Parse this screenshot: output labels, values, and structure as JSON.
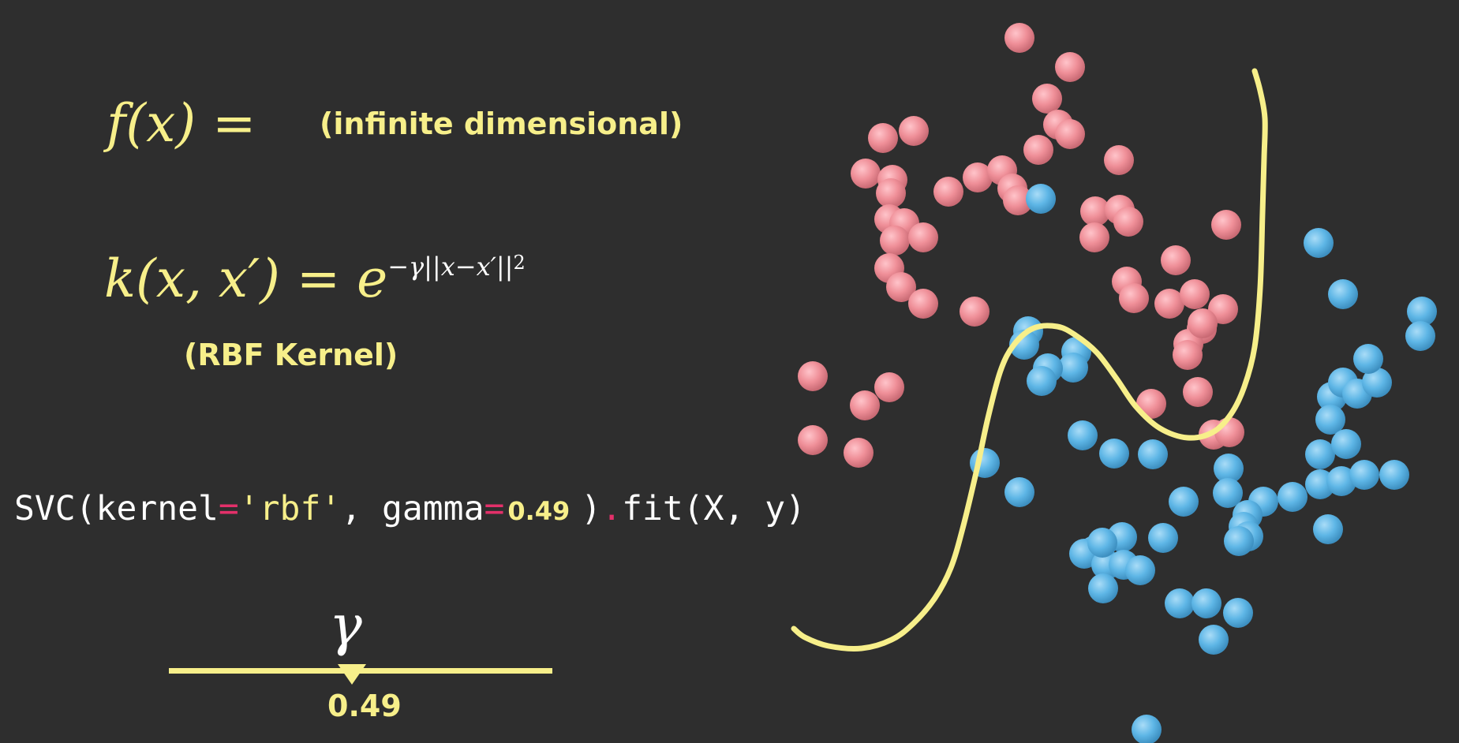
{
  "equations": {
    "f_lhs": "f(x) =",
    "f_note": "(infinite dimensional)",
    "kernel_lhs": "k(x, x′) = e",
    "kernel_exponent": "−γ||x−x′||",
    "kernel_power": "2",
    "kernel_note": "(RBF Kernel)"
  },
  "code": {
    "prefix": "SVC(kernel",
    "eq1": "=",
    "kernel_value": "'rbf'",
    "mid": ", gamma",
    "eq2": "=",
    "gamma_value": "0.49",
    "close": ")",
    "dot": ".",
    "suffix": "fit(X, y)"
  },
  "slider": {
    "symbol": "γ",
    "value_label": "0.49",
    "fraction": 0.41
  },
  "colors": {
    "background": "#2e2e2e",
    "accent_yellow": "#f7ef8a",
    "red_class": "#ef8f98",
    "blue_class": "#5eb6e6",
    "code_operator": "#e3306a"
  },
  "scatter": {
    "red_points": [
      [
        1292,
        48
      ],
      [
        1356,
        85
      ],
      [
        1327,
        125
      ],
      [
        1341,
        158
      ],
      [
        1356,
        170
      ],
      [
        1316,
        190
      ],
      [
        1418,
        203
      ],
      [
        1119,
        175
      ],
      [
        1158,
        166
      ],
      [
        1097,
        220
      ],
      [
        1131,
        228
      ],
      [
        1129,
        245
      ],
      [
        1202,
        243
      ],
      [
        1239,
        225
      ],
      [
        1270,
        216
      ],
      [
        1283,
        239
      ],
      [
        1290,
        254
      ],
      [
        1388,
        268
      ],
      [
        1419,
        266
      ],
      [
        1430,
        281
      ],
      [
        1387,
        301
      ],
      [
        1554,
        285
      ],
      [
        1490,
        330
      ],
      [
        1127,
        278
      ],
      [
        1146,
        283
      ],
      [
        1134,
        305
      ],
      [
        1170,
        301
      ],
      [
        1127,
        340
      ],
      [
        1142,
        364
      ],
      [
        1170,
        385
      ],
      [
        1235,
        395
      ],
      [
        1428,
        357
      ],
      [
        1437,
        378
      ],
      [
        1482,
        385
      ],
      [
        1514,
        373
      ],
      [
        1550,
        392
      ],
      [
        1523,
        417
      ],
      [
        1506,
        436
      ],
      [
        1524,
        410
      ],
      [
        1505,
        450
      ],
      [
        1030,
        477
      ],
      [
        1127,
        491
      ],
      [
        1096,
        514
      ],
      [
        1030,
        558
      ],
      [
        1088,
        574
      ],
      [
        1459,
        512
      ],
      [
        1518,
        497
      ],
      [
        1538,
        551
      ],
      [
        1558,
        548
      ]
    ],
    "blue_points": [
      [
        1319,
        252
      ],
      [
        1303,
        420
      ],
      [
        1298,
        437
      ],
      [
        1364,
        446
      ],
      [
        1360,
        466
      ],
      [
        1328,
        467
      ],
      [
        1320,
        483
      ],
      [
        1372,
        552
      ],
      [
        1248,
        587
      ],
      [
        1292,
        624
      ],
      [
        1461,
        576
      ],
      [
        1500,
        636
      ],
      [
        1557,
        594
      ],
      [
        1556,
        625
      ],
      [
        1601,
        636
      ],
      [
        1581,
        653
      ],
      [
        1576,
        668
      ],
      [
        1582,
        680
      ],
      [
        1570,
        686
      ],
      [
        1638,
        630
      ],
      [
        1673,
        614
      ],
      [
        1673,
        576
      ],
      [
        1688,
        503
      ],
      [
        1702,
        485
      ],
      [
        1686,
        532
      ],
      [
        1706,
        563
      ],
      [
        1720,
        499
      ],
      [
        1745,
        485
      ],
      [
        1700,
        610
      ],
      [
        1729,
        602
      ],
      [
        1683,
        671
      ],
      [
        1767,
        602
      ],
      [
        1734,
        455
      ],
      [
        1802,
        395
      ],
      [
        1800,
        426
      ],
      [
        1671,
        308
      ],
      [
        1702,
        373
      ],
      [
        1412,
        575
      ],
      [
        1474,
        682
      ],
      [
        1422,
        681
      ],
      [
        1387,
        698
      ],
      [
        1374,
        702
      ],
      [
        1402,
        716
      ],
      [
        1397,
        688
      ],
      [
        1424,
        716
      ],
      [
        1445,
        723
      ],
      [
        1398,
        746
      ],
      [
        1495,
        765
      ],
      [
        1529,
        765
      ],
      [
        1569,
        777
      ],
      [
        1538,
        811
      ],
      [
        1453,
        925
      ]
    ],
    "boundary": [
      [
        1006,
        797
      ],
      [
        1020,
        808
      ],
      [
        1050,
        819
      ],
      [
        1092,
        822
      ],
      [
        1130,
        811
      ],
      [
        1158,
        790
      ],
      [
        1185,
        758
      ],
      [
        1205,
        720
      ],
      [
        1220,
        670
      ],
      [
        1238,
        595
      ],
      [
        1252,
        530
      ],
      [
        1268,
        470
      ],
      [
        1285,
        437
      ],
      [
        1310,
        416
      ],
      [
        1340,
        414
      ],
      [
        1363,
        425
      ],
      [
        1390,
        447
      ],
      [
        1415,
        480
      ],
      [
        1440,
        516
      ],
      [
        1470,
        543
      ],
      [
        1505,
        555
      ],
      [
        1537,
        548
      ],
      [
        1560,
        525
      ],
      [
        1577,
        490
      ],
      [
        1590,
        440
      ],
      [
        1597,
        365
      ],
      [
        1600,
        270
      ],
      [
        1602,
        200
      ],
      [
        1603,
        150
      ],
      [
        1597,
        115
      ],
      [
        1590,
        90
      ]
    ]
  }
}
